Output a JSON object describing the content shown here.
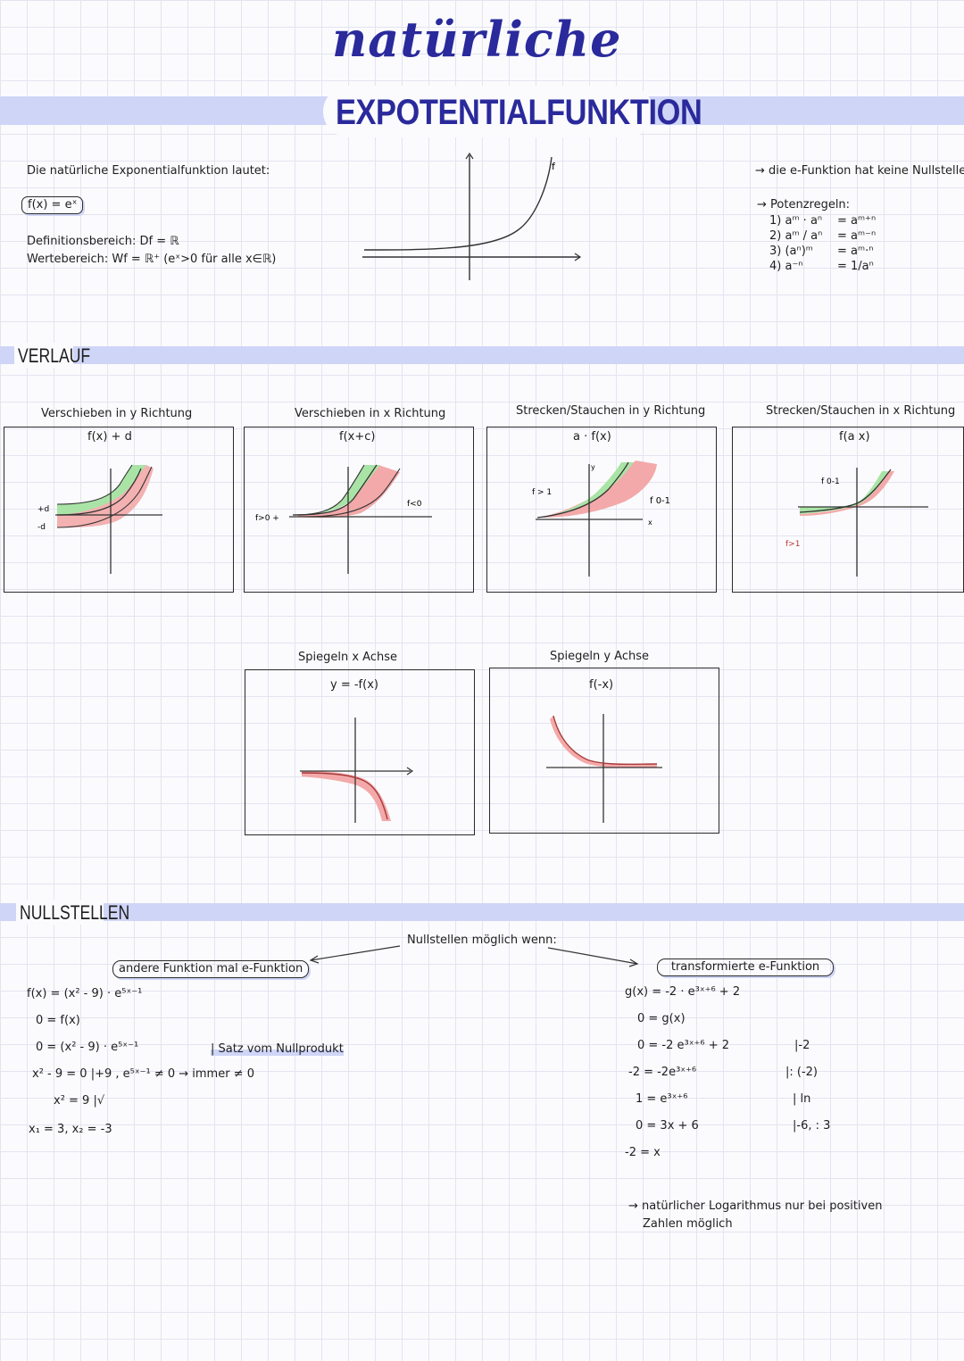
{
  "title": {
    "script": "natürliche",
    "main": "EXPOTENTIALFUNKTION"
  },
  "intro": {
    "lead": "Die natürliche Exponentialfunktion lautet:",
    "formula": "f(x) = eˣ",
    "domain": "Definitionsbereich: Df = ℝ",
    "range": "Wertebereich: Wf = ℝ⁺ (eˣ>0 für alle x∈ℝ)",
    "graph_label": "f"
  },
  "facts": {
    "no_zeros": "→ die e-Funktion hat keine Nullstellen",
    "rules_title": "→ Potenzregeln:",
    "rules": [
      {
        "lhs": "1) aᵐ · aⁿ",
        "rhs": "= aᵐ⁺ⁿ"
      },
      {
        "lhs": "2) aᵐ / aⁿ",
        "rhs": "= aᵐ⁻ⁿ"
      },
      {
        "lhs": "3) (aⁿ)ᵐ",
        "rhs": "= aᵐ·ⁿ"
      },
      {
        "lhs": "4) a⁻ⁿ",
        "rhs": "= 1/aⁿ"
      }
    ]
  },
  "verlauf": {
    "heading": "VERLAUF",
    "panels": [
      {
        "title": "Verschieben in y Richtung",
        "formula": "f(x) + d",
        "notes": [
          "+d",
          "-d"
        ]
      },
      {
        "title": "Verschieben in x Richtung",
        "formula": "f(x+c)",
        "notes": [
          "f>0 +",
          "f<0"
        ]
      },
      {
        "title": "Strecken/Stauchen in y Richtung",
        "formula": "a · f(x)",
        "notes": [
          "f > 1",
          "f 0-1",
          "x",
          "y"
        ]
      },
      {
        "title": "Strecken/Stauchen in x Richtung",
        "formula": "f(a x)",
        "notes": [
          "f 0-1",
          "f>1"
        ]
      },
      {
        "title": "Spiegeln x Achse",
        "formula": "y = -f(x)"
      },
      {
        "title": "Spiegeln y Achse",
        "formula": "f(-x)"
      }
    ]
  },
  "nullstellen": {
    "heading": "NULLSTELLEN",
    "center": "Nullstellen möglich wenn:",
    "left_pill": "andere Funktion mal e-Funktion",
    "right_pill": "transformierte e-Funktion",
    "left_lines": [
      "f(x) = (x² - 9) · e⁵ˣ⁻¹",
      "0 = f(x)",
      "0 = (x² - 9) · e⁵ˣ⁻¹",
      "x² - 9 = 0 |+9 ,   e⁵ˣ⁻¹ ≠ 0 → immer ≠ 0",
      "x² = 9 |√",
      "x₁ = 3, x₂ = -3"
    ],
    "satz": "| Satz vom Nullprodukt",
    "right_lines": [
      {
        "lhs": "g(x) = -2 · e³ˣ⁺⁶ + 2",
        "op": ""
      },
      {
        "lhs": "0 = g(x)",
        "op": ""
      },
      {
        "lhs": "0 = -2 e³ˣ⁺⁶ + 2",
        "op": "|-2"
      },
      {
        "lhs": "-2 = -2e³ˣ⁺⁶",
        "op": "|: (-2)"
      },
      {
        "lhs": "1 = e³ˣ⁺⁶",
        "op": "| ln"
      },
      {
        "lhs": "0 = 3x + 6",
        "op": "|-6, : 3"
      },
      {
        "lhs": "-2 = x",
        "op": ""
      }
    ],
    "log_note_1": "→ natürlicher Logarithmus nur bei positiven",
    "log_note_2": "Zahlen möglich"
  },
  "colors": {
    "accent": "#2a2a9c",
    "band": "#cfd5f7",
    "red": "#f3a9a9",
    "green": "#a9e4a6",
    "curve_red": "#a83a3a"
  }
}
